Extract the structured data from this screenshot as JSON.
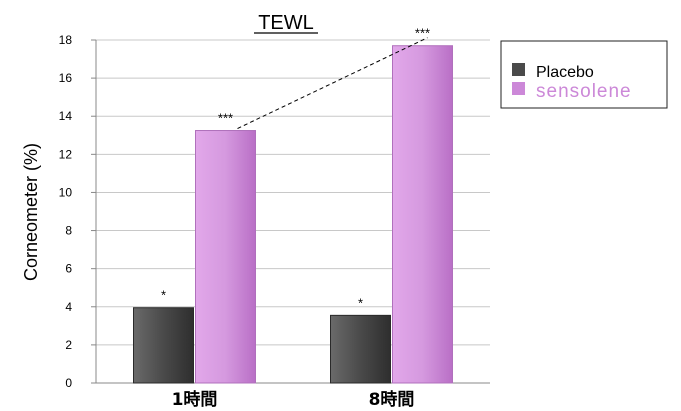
{
  "chart_data": {
    "type": "bar",
    "title": "TEWL",
    "ylabel": "Corneometer (%)",
    "xlabel": "",
    "categories": [
      "1時間",
      "8時間"
    ],
    "ylim": [
      0,
      18
    ],
    "yticks": [
      0,
      2,
      4,
      6,
      8,
      10,
      12,
      14,
      16,
      18
    ],
    "grid": true,
    "legend_position": "top-right",
    "series": [
      {
        "name": "Placebo",
        "values": [
          3.95,
          3.55
        ],
        "color": "#4a4a4a",
        "significance": [
          "*",
          "*"
        ]
      },
      {
        "name": "sensolene",
        "values": [
          13.25,
          17.7
        ],
        "color": "#cc88d8",
        "significance": [
          "***",
          "***"
        ]
      }
    ],
    "trend_line": {
      "series": "sensolene",
      "from_category": "1時間",
      "to_category": "8時間",
      "style": "dashed"
    }
  }
}
